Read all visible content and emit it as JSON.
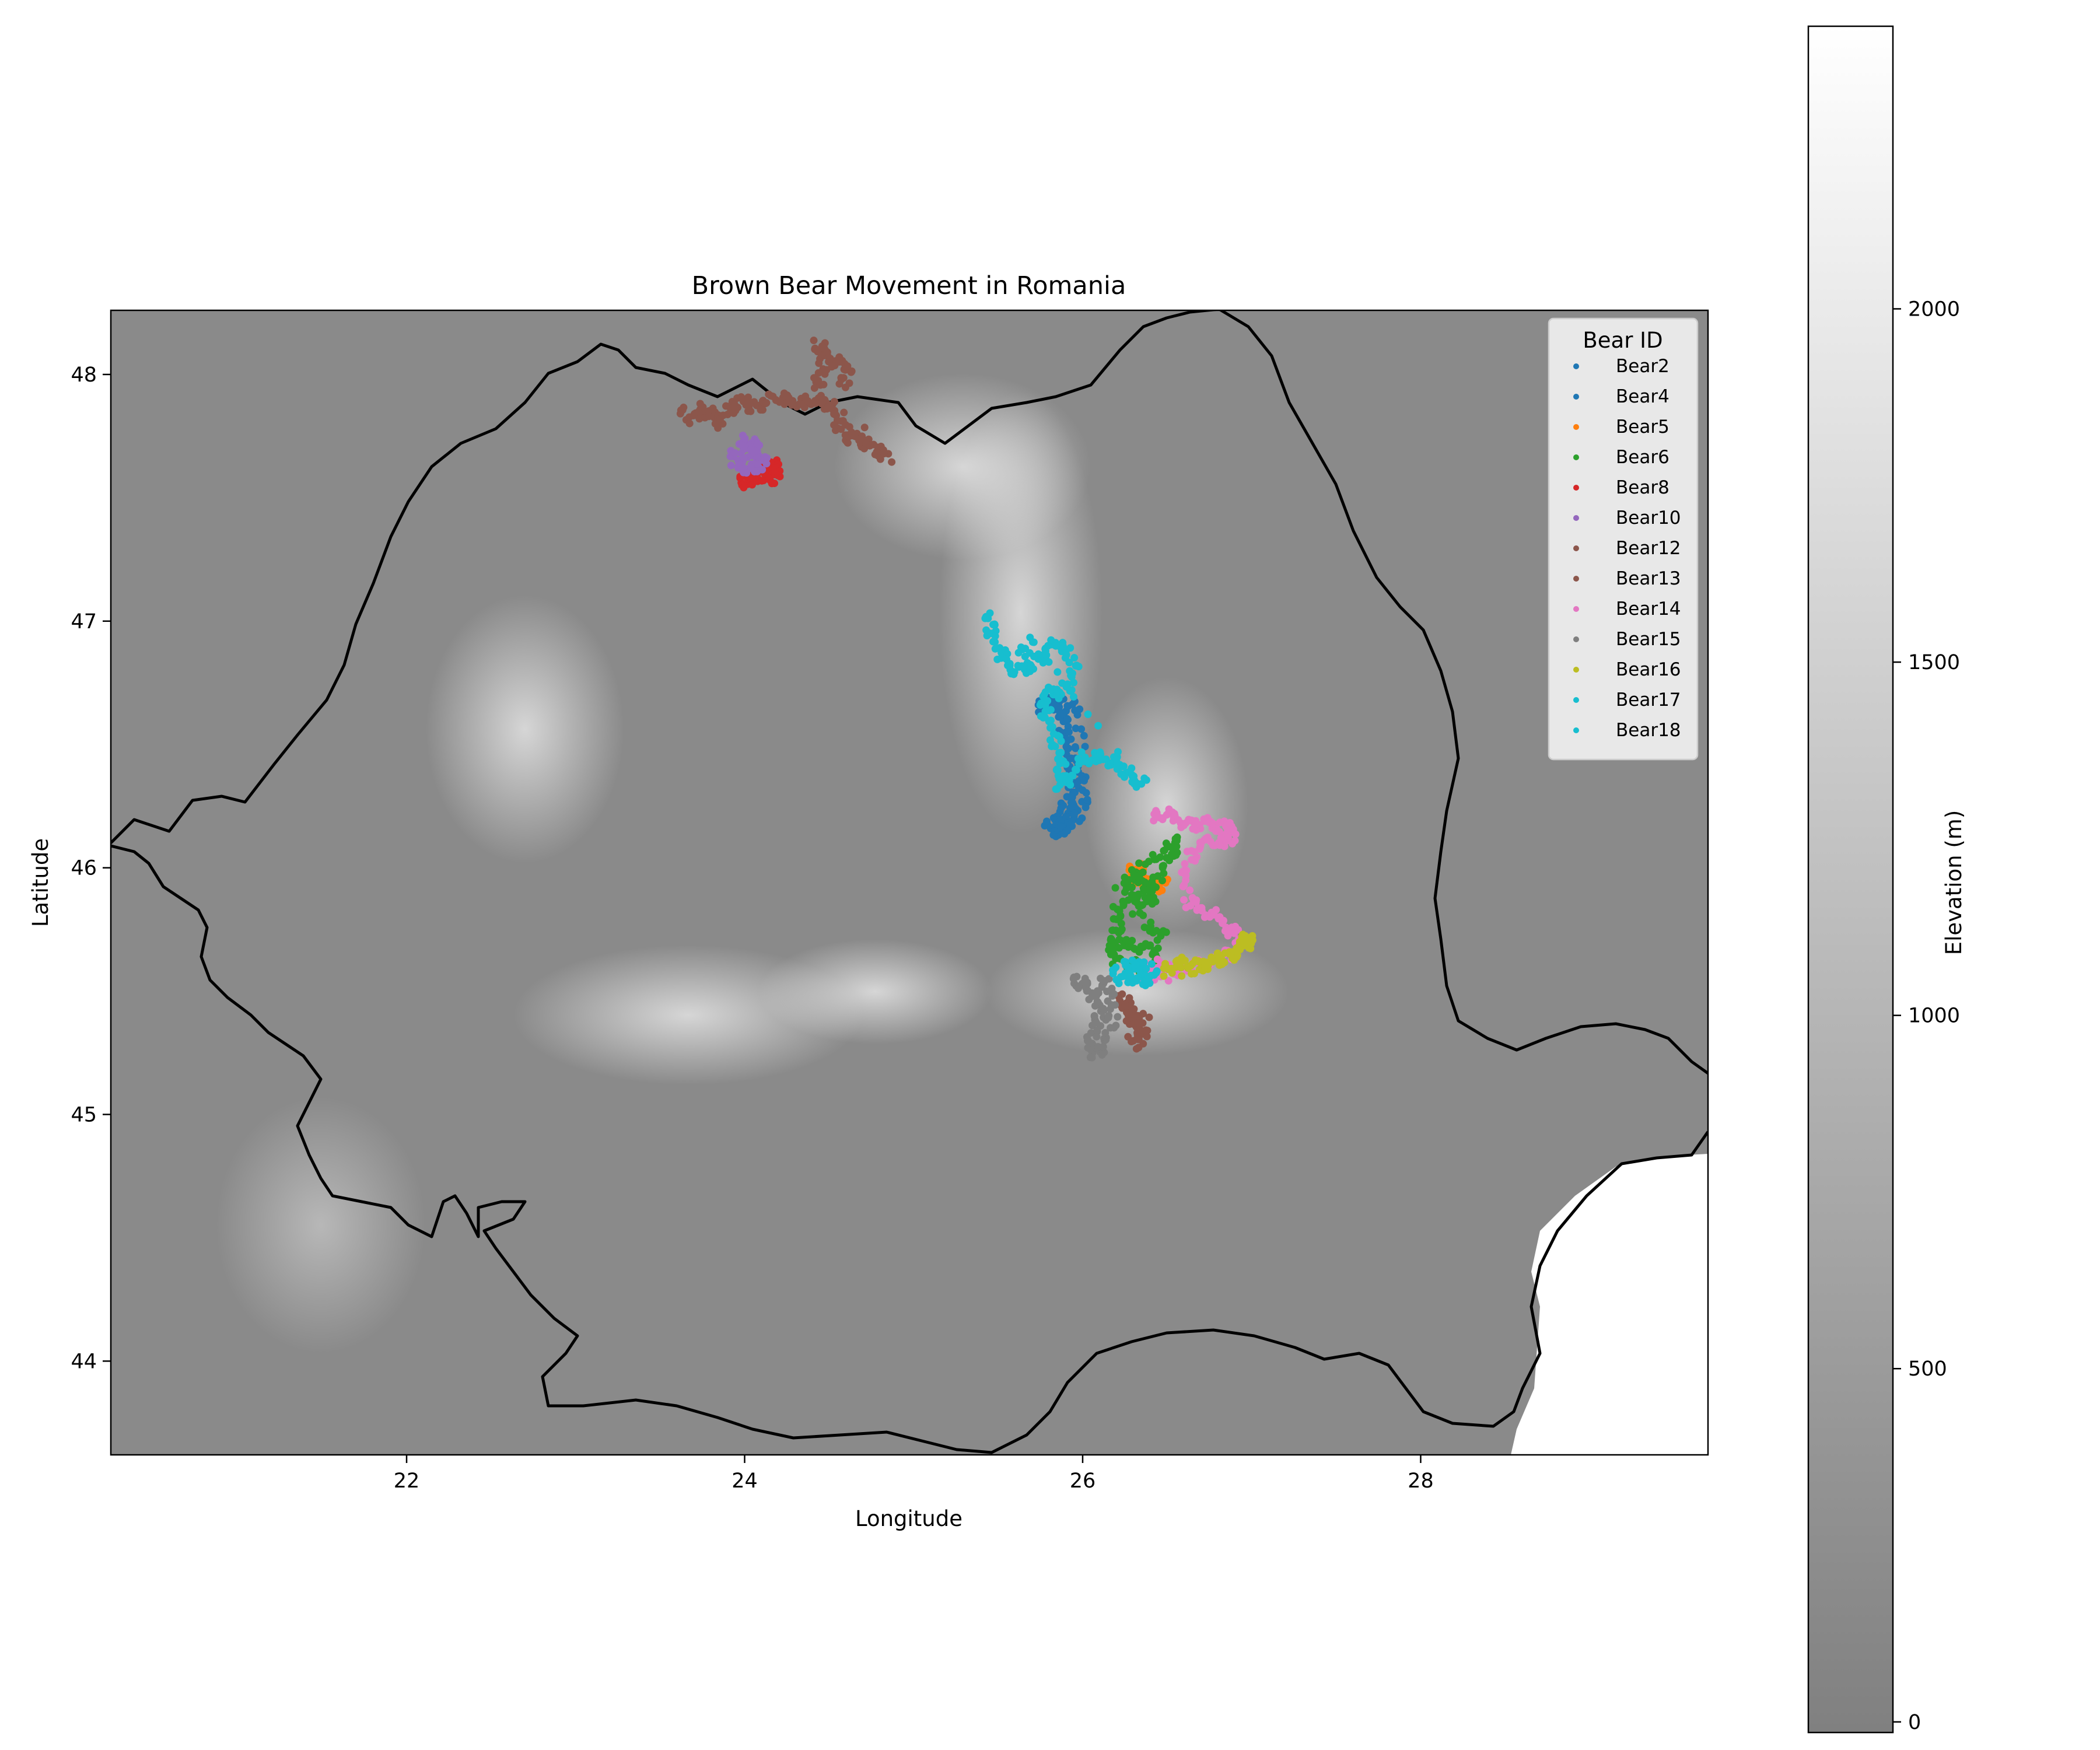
{
  "chart_data": {
    "type": "scatter",
    "title": "Brown Bear Movement in Romania",
    "xlabel": "Longitude",
    "ylabel": "Latitude",
    "xlim": [
      20.25,
      29.7
    ],
    "ylim": [
      43.62,
      48.26
    ],
    "xticks": [
      22,
      24,
      26,
      28
    ],
    "yticks": [
      44,
      45,
      46,
      47,
      48
    ],
    "grid": false,
    "background": "elevation raster (grey) with Romania border outline",
    "legend": {
      "title": "Bear ID",
      "position": "top-right"
    },
    "colorbar": {
      "label": "Elevation (m)",
      "ticks": [
        0,
        500,
        1000,
        1500,
        2000
      ],
      "range": [
        -15,
        2400
      ],
      "colors": [
        "#808080",
        "#ffffff"
      ]
    },
    "series": [
      {
        "name": "Bear2",
        "color": "#1f77b4",
        "points": [
          [
            25.78,
            46.66
          ],
          [
            25.84,
            46.7
          ],
          [
            25.88,
            46.62
          ],
          [
            25.9,
            46.5
          ],
          [
            25.95,
            46.4
          ],
          [
            25.93,
            46.3
          ],
          [
            25.88,
            46.22
          ],
          [
            25.8,
            46.18
          ],
          [
            25.86,
            46.14
          ],
          [
            25.92,
            46.2
          ],
          [
            25.96,
            46.34
          ],
          [
            25.92,
            46.55
          ],
          [
            25.86,
            46.68
          ]
        ]
      },
      {
        "name": "Bear4",
        "color": "#1f77b4",
        "points": [
          [
            25.74,
            46.65
          ],
          [
            25.8,
            46.67
          ],
          [
            25.86,
            46.64
          ],
          [
            25.97,
            46.66
          ],
          [
            25.99,
            46.45
          ],
          [
            26.02,
            46.28
          ],
          [
            25.96,
            46.2
          ],
          [
            25.89,
            46.16
          ],
          [
            25.83,
            46.14
          ]
        ]
      },
      {
        "name": "Bear5",
        "color": "#ff7f0e",
        "points": [
          [
            26.28,
            45.98
          ],
          [
            26.33,
            46.0
          ],
          [
            26.38,
            45.96
          ],
          [
            26.44,
            45.92
          ],
          [
            26.48,
            45.94
          ],
          [
            26.3,
            45.95
          ]
        ]
      },
      {
        "name": "Bear6",
        "color": "#2ca02c",
        "points": [
          [
            26.25,
            45.92
          ],
          [
            26.3,
            45.97
          ],
          [
            26.37,
            45.95
          ],
          [
            26.42,
            45.88
          ],
          [
            26.36,
            45.86
          ],
          [
            26.3,
            45.88
          ],
          [
            26.45,
            45.96
          ],
          [
            26.52,
            46.05
          ],
          [
            26.56,
            46.12
          ],
          [
            26.5,
            46.06
          ],
          [
            26.35,
            46.02
          ],
          [
            26.22,
            45.83
          ],
          [
            26.2,
            45.74
          ],
          [
            26.16,
            45.66
          ],
          [
            26.24,
            45.7
          ],
          [
            26.35,
            45.68
          ],
          [
            26.44,
            45.66
          ],
          [
            26.38,
            45.58
          ],
          [
            26.3,
            45.61
          ],
          [
            26.17,
            45.63
          ],
          [
            26.22,
            45.9
          ],
          [
            26.4,
            45.76
          ],
          [
            26.47,
            45.72
          ]
        ]
      },
      {
        "name": "Bear8",
        "color": "#d62728",
        "points": [
          [
            23.98,
            47.58
          ],
          [
            24.02,
            47.56
          ],
          [
            24.07,
            47.59
          ],
          [
            24.12,
            47.62
          ],
          [
            24.17,
            47.64
          ],
          [
            24.2,
            47.6
          ],
          [
            24.14,
            47.57
          ],
          [
            24.03,
            47.61
          ]
        ]
      },
      {
        "name": "Bear10",
        "color": "#9467bd",
        "points": [
          [
            23.92,
            47.65
          ],
          [
            23.97,
            47.7
          ],
          [
            24.02,
            47.74
          ],
          [
            24.07,
            47.69
          ],
          [
            24.11,
            47.64
          ],
          [
            24.05,
            47.62
          ],
          [
            23.97,
            47.62
          ],
          [
            24.02,
            47.67
          ],
          [
            24.09,
            47.72
          ]
        ]
      },
      {
        "name": "Bear12",
        "color": "#8c564b",
        "points": [
          [
            23.62,
            47.86
          ],
          [
            23.7,
            47.82
          ],
          [
            23.77,
            47.87
          ],
          [
            23.83,
            47.8
          ],
          [
            23.9,
            47.85
          ],
          [
            23.95,
            47.88
          ],
          [
            24.0,
            47.9
          ],
          [
            24.06,
            47.86
          ],
          [
            24.12,
            47.89
          ],
          [
            24.2,
            47.91
          ],
          [
            24.27,
            47.89
          ],
          [
            24.34,
            47.88
          ],
          [
            24.41,
            47.9
          ],
          [
            24.48,
            47.89
          ],
          [
            24.52,
            47.86
          ],
          [
            24.56,
            47.8
          ],
          [
            24.6,
            47.74
          ],
          [
            24.66,
            47.75
          ],
          [
            24.72,
            47.72
          ],
          [
            24.79,
            47.69
          ],
          [
            24.85,
            47.66
          ],
          [
            24.42,
            47.95
          ],
          [
            24.46,
            48.0
          ],
          [
            24.43,
            48.12
          ],
          [
            24.48,
            48.09
          ],
          [
            24.55,
            48.04
          ],
          [
            24.62,
            48.02
          ],
          [
            24.58,
            47.95
          ]
        ]
      },
      {
        "name": "Bear13",
        "color": "#8c564b",
        "points": [
          [
            26.22,
            45.48
          ],
          [
            26.26,
            45.45
          ],
          [
            26.29,
            45.4
          ],
          [
            26.33,
            45.36
          ],
          [
            26.36,
            45.32
          ],
          [
            26.31,
            45.28
          ],
          [
            26.27,
            45.42
          ],
          [
            26.38,
            45.38
          ]
        ]
      },
      {
        "name": "Bear14",
        "color": "#e377c2",
        "points": [
          [
            26.42,
            46.21
          ],
          [
            26.5,
            46.22
          ],
          [
            26.58,
            46.19
          ],
          [
            26.66,
            46.17
          ],
          [
            26.72,
            46.19
          ],
          [
            26.8,
            46.16
          ],
          [
            26.86,
            46.18
          ],
          [
            26.88,
            46.12
          ],
          [
            26.83,
            46.1
          ],
          [
            26.73,
            46.11
          ],
          [
            26.66,
            46.07
          ],
          [
            26.6,
            45.98
          ],
          [
            26.63,
            45.86
          ],
          [
            26.7,
            45.83
          ],
          [
            26.8,
            45.8
          ],
          [
            26.88,
            45.75
          ],
          [
            26.93,
            45.7
          ],
          [
            26.87,
            45.65
          ],
          [
            26.76,
            45.62
          ],
          [
            26.64,
            45.6
          ],
          [
            26.52,
            45.58
          ],
          [
            26.44,
            45.61
          ],
          [
            26.36,
            45.56
          ],
          [
            26.5,
            45.56
          ]
        ]
      },
      {
        "name": "Bear15",
        "color": "#7f7f7f",
        "points": [
          [
            25.95,
            45.55
          ],
          [
            26.0,
            45.53
          ],
          [
            26.05,
            45.5
          ],
          [
            26.09,
            45.46
          ],
          [
            26.1,
            45.4
          ],
          [
            26.07,
            45.34
          ],
          [
            26.04,
            45.28
          ],
          [
            26.08,
            45.24
          ],
          [
            26.14,
            45.31
          ],
          [
            26.18,
            45.4
          ],
          [
            26.16,
            45.5
          ],
          [
            26.12,
            45.55
          ]
        ]
      },
      {
        "name": "Bear16",
        "color": "#bcbd22",
        "points": [
          [
            26.48,
            45.58
          ],
          [
            26.55,
            45.61
          ],
          [
            26.62,
            45.62
          ],
          [
            26.7,
            45.6
          ],
          [
            26.77,
            45.62
          ],
          [
            26.83,
            45.63
          ],
          [
            26.89,
            45.65
          ],
          [
            26.95,
            45.68
          ],
          [
            27.0,
            45.7
          ],
          [
            26.96,
            45.72
          ],
          [
            26.9,
            45.66
          ],
          [
            26.6,
            45.56
          ]
        ]
      },
      {
        "name": "Bear17",
        "color": "#17becf",
        "points": [
          [
            26.18,
            45.59
          ],
          [
            26.24,
            45.55
          ],
          [
            26.3,
            45.56
          ],
          [
            26.36,
            45.54
          ],
          [
            26.42,
            45.57
          ],
          [
            26.33,
            45.6
          ],
          [
            26.25,
            45.61
          ],
          [
            26.4,
            45.6
          ]
        ]
      },
      {
        "name": "Bear18",
        "color": "#17becf",
        "points": [
          [
            25.44,
            47.03
          ],
          [
            25.46,
            46.96
          ],
          [
            25.5,
            46.89
          ],
          [
            25.56,
            46.82
          ],
          [
            25.62,
            46.8
          ],
          [
            25.7,
            46.82
          ],
          [
            25.76,
            46.86
          ],
          [
            25.82,
            46.91
          ],
          [
            25.9,
            46.89
          ],
          [
            25.95,
            46.82
          ],
          [
            25.92,
            46.74
          ],
          [
            25.86,
            46.7
          ],
          [
            25.8,
            46.72
          ],
          [
            25.76,
            46.66
          ],
          [
            25.8,
            46.6
          ],
          [
            25.84,
            46.52
          ],
          [
            25.86,
            46.45
          ],
          [
            25.88,
            46.38
          ],
          [
            25.86,
            46.33
          ],
          [
            25.94,
            46.38
          ],
          [
            26.02,
            46.45
          ],
          [
            26.1,
            46.45
          ],
          [
            26.18,
            46.43
          ],
          [
            26.24,
            46.4
          ],
          [
            26.3,
            46.36
          ],
          [
            26.35,
            46.34
          ],
          [
            25.7,
            46.92
          ],
          [
            25.64,
            46.86
          ]
        ]
      }
    ]
  }
}
